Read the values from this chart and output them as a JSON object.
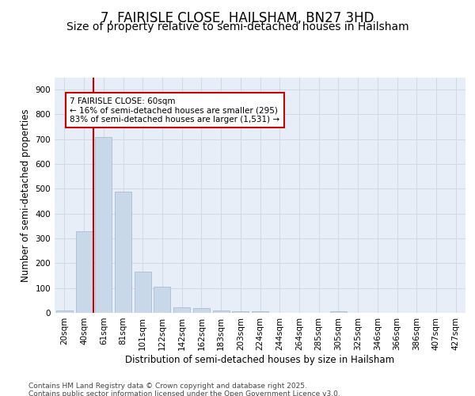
{
  "title": "7, FAIRISLE CLOSE, HAILSHAM, BN27 3HD",
  "subtitle": "Size of property relative to semi-detached houses in Hailsham",
  "xlabel": "Distribution of semi-detached houses by size in Hailsham",
  "ylabel": "Number of semi-detached properties",
  "categories": [
    "20sqm",
    "40sqm",
    "61sqm",
    "81sqm",
    "101sqm",
    "122sqm",
    "142sqm",
    "162sqm",
    "183sqm",
    "203sqm",
    "224sqm",
    "244sqm",
    "264sqm",
    "285sqm",
    "305sqm",
    "325sqm",
    "346sqm",
    "366sqm",
    "386sqm",
    "407sqm",
    "427sqm"
  ],
  "values": [
    10,
    330,
    710,
    490,
    165,
    105,
    22,
    18,
    10,
    5,
    5,
    0,
    0,
    0,
    5,
    0,
    0,
    0,
    0,
    0,
    0
  ],
  "bar_color": "#c8d8e8",
  "bar_edge_color": "#a0b8d0",
  "highlight_index": 2,
  "highlight_color": "#cc0000",
  "annotation_text": "7 FAIRISLE CLOSE: 60sqm\n← 16% of semi-detached houses are smaller (295)\n83% of semi-detached houses are larger (1,531) →",
  "annotation_box_color": "#ffffff",
  "annotation_box_edge_color": "#cc0000",
  "ylim": [
    0,
    950
  ],
  "yticks": [
    0,
    100,
    200,
    300,
    400,
    500,
    600,
    700,
    800,
    900
  ],
  "grid_color": "#d0d8e8",
  "background_color": "#e8eef8",
  "footer_text": "Contains HM Land Registry data © Crown copyright and database right 2025.\nContains public sector information licensed under the Open Government Licence v3.0.",
  "title_fontsize": 12,
  "subtitle_fontsize": 10,
  "axis_fontsize": 8.5,
  "tick_fontsize": 7.5,
  "footer_fontsize": 6.5,
  "annotation_fontsize": 7.5
}
